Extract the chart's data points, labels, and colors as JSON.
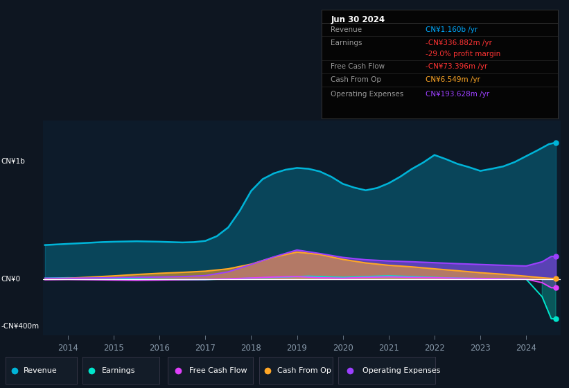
{
  "bg_color": "#0e1621",
  "plot_bg_color": "#0d1b2a",
  "legend_bg_color": "#131c28",
  "colors": {
    "revenue": "#00b4d8",
    "earnings": "#00e5cc",
    "free_cash_flow": "#e040fb",
    "cash_from_op": "#ffa726",
    "operating_expenses": "#9c40ff"
  },
  "ylim": [
    -480000000,
    1350000000
  ],
  "xlim_start": 2013.45,
  "xlim_end": 2024.75,
  "xtick_years": [
    2014,
    2015,
    2016,
    2017,
    2018,
    2019,
    2020,
    2021,
    2022,
    2023,
    2024
  ],
  "ytick_vals": [
    1000000000,
    0,
    -400000000
  ],
  "ytick_labels": [
    "CN¥1b",
    "CN¥0",
    "-CN¥400m"
  ],
  "info_date": "Jun 30 2024",
  "info_rows": [
    {
      "label": "Revenue",
      "value": "CN¥1.160b /yr",
      "vcolor": "#00aaff",
      "sep": true
    },
    {
      "label": "Earnings",
      "value": "-CN¥336.882m /yr",
      "vcolor": "#ff3333",
      "sep": false
    },
    {
      "label": "",
      "value": "-29.0% profit margin",
      "vcolor": "#ff3333",
      "sep": true
    },
    {
      "label": "Free Cash Flow",
      "value": "-CN¥73.396m /yr",
      "vcolor": "#ff3333",
      "sep": true
    },
    {
      "label": "Cash From Op",
      "value": "CN¥6.549m /yr",
      "vcolor": "#ffa726",
      "sep": true
    },
    {
      "label": "Operating Expenses",
      "value": "CN¥193.628m /yr",
      "vcolor": "#9c40ff",
      "sep": false
    }
  ],
  "legend": [
    {
      "label": "Revenue",
      "color": "#00b4d8"
    },
    {
      "label": "Earnings",
      "color": "#00e5cc"
    },
    {
      "label": "Free Cash Flow",
      "color": "#e040fb"
    },
    {
      "label": "Cash From Op",
      "color": "#ffa726"
    },
    {
      "label": "Operating Expenses",
      "color": "#9c40ff"
    }
  ],
  "revenue_x": [
    2013.5,
    2013.75,
    2014.0,
    2014.25,
    2014.5,
    2014.75,
    2015.0,
    2015.25,
    2015.5,
    2015.75,
    2016.0,
    2016.25,
    2016.5,
    2016.75,
    2017.0,
    2017.25,
    2017.5,
    2017.75,
    2018.0,
    2018.25,
    2018.5,
    2018.75,
    2019.0,
    2019.25,
    2019.5,
    2019.75,
    2020.0,
    2020.25,
    2020.5,
    2020.75,
    2021.0,
    2021.25,
    2021.5,
    2021.75,
    2022.0,
    2022.25,
    2022.5,
    2022.75,
    2023.0,
    2023.25,
    2023.5,
    2023.75,
    2024.0,
    2024.25,
    2024.5,
    2024.65
  ],
  "revenue_y": [
    290000000,
    295000000,
    300000000,
    305000000,
    310000000,
    315000000,
    318000000,
    320000000,
    322000000,
    320000000,
    318000000,
    315000000,
    312000000,
    315000000,
    325000000,
    365000000,
    440000000,
    580000000,
    750000000,
    850000000,
    900000000,
    930000000,
    945000000,
    938000000,
    915000000,
    870000000,
    810000000,
    778000000,
    755000000,
    775000000,
    815000000,
    870000000,
    935000000,
    990000000,
    1055000000,
    1020000000,
    980000000,
    952000000,
    920000000,
    938000000,
    958000000,
    995000000,
    1045000000,
    1095000000,
    1148000000,
    1160000000
  ],
  "earnings_x": [
    2013.5,
    2014.0,
    2014.5,
    2015.0,
    2015.5,
    2016.0,
    2016.5,
    2017.0,
    2017.5,
    2018.0,
    2018.5,
    2019.0,
    2019.25,
    2019.5,
    2019.75,
    2020.0,
    2020.5,
    2021.0,
    2021.5,
    2022.0,
    2022.5,
    2023.0,
    2023.5,
    2024.0,
    2024.35,
    2024.55,
    2024.65
  ],
  "earnings_y": [
    8000000,
    12000000,
    10000000,
    8000000,
    2000000,
    -3000000,
    -5000000,
    -4000000,
    2000000,
    8000000,
    15000000,
    22000000,
    25000000,
    22000000,
    18000000,
    15000000,
    22000000,
    28000000,
    22000000,
    15000000,
    8000000,
    5000000,
    3000000,
    0,
    -150000000,
    -336882000,
    -336882000
  ],
  "fcf_x": [
    2013.5,
    2014.0,
    2014.5,
    2015.0,
    2015.5,
    2016.0,
    2016.5,
    2017.0,
    2017.5,
    2018.0,
    2018.5,
    2019.0,
    2019.5,
    2020.0,
    2020.5,
    2021.0,
    2021.5,
    2022.0,
    2022.5,
    2023.0,
    2023.5,
    2024.0,
    2024.35,
    2024.55,
    2024.65
  ],
  "fcf_y": [
    -5000000,
    -3000000,
    -5000000,
    -8000000,
    -10000000,
    -8000000,
    -5000000,
    -3000000,
    3000000,
    10000000,
    18000000,
    22000000,
    12000000,
    8000000,
    15000000,
    20000000,
    15000000,
    12000000,
    8000000,
    6000000,
    3000000,
    0,
    -30000000,
    -73396000,
    -73396000
  ],
  "cfo_x": [
    2013.5,
    2014.0,
    2014.5,
    2015.0,
    2015.5,
    2016.0,
    2016.5,
    2017.0,
    2017.5,
    2018.0,
    2018.5,
    2019.0,
    2019.5,
    2020.0,
    2020.5,
    2021.0,
    2021.5,
    2022.0,
    2022.5,
    2023.0,
    2023.5,
    2024.0,
    2024.35,
    2024.55,
    2024.65
  ],
  "cfo_y": [
    3000000,
    8000000,
    18000000,
    28000000,
    40000000,
    50000000,
    58000000,
    68000000,
    88000000,
    128000000,
    188000000,
    230000000,
    210000000,
    168000000,
    138000000,
    118000000,
    105000000,
    88000000,
    72000000,
    55000000,
    42000000,
    25000000,
    12000000,
    6549000,
    6549000
  ],
  "opex_x": [
    2013.5,
    2014.0,
    2014.5,
    2015.0,
    2015.5,
    2016.0,
    2016.5,
    2017.0,
    2017.5,
    2018.0,
    2018.5,
    2019.0,
    2019.5,
    2020.0,
    2020.5,
    2021.0,
    2021.5,
    2022.0,
    2022.5,
    2023.0,
    2023.5,
    2024.0,
    2024.35,
    2024.55,
    2024.65
  ],
  "opex_y": [
    8000000,
    8000000,
    10000000,
    12000000,
    15000000,
    18000000,
    22000000,
    30000000,
    62000000,
    125000000,
    190000000,
    248000000,
    218000000,
    185000000,
    165000000,
    155000000,
    148000000,
    140000000,
    132000000,
    125000000,
    118000000,
    112000000,
    148000000,
    193628000,
    193628000
  ]
}
